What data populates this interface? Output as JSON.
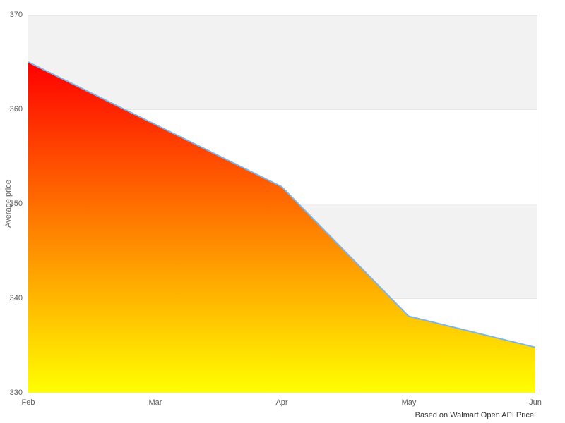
{
  "chart": {
    "y_axis_title": "Average price",
    "caption": "Based on Walmart Open API Price",
    "colors": {
      "line": "#7cb5ec",
      "gradient_top": "#ff0000",
      "gradient_bottom": "#ffff00",
      "band_fill": "#f2f2f2",
      "gridline": "#e6e6e6",
      "axis_line": "#d9d9d9",
      "label_text": "#606060",
      "caption_text": "#333333"
    }
  },
  "chart_data": {
    "type": "area",
    "categories": [
      "Feb",
      "Mar",
      "Apr",
      "May",
      "Jun"
    ],
    "series": [
      {
        "name": "Average price",
        "values": [
          365,
          358.4,
          351.8,
          338.1,
          334.8
        ]
      }
    ],
    "title": "",
    "xlabel": "",
    "ylabel": "Average price",
    "ylim": [
      330,
      370
    ],
    "yticks": [
      330,
      340,
      350,
      360,
      370
    ],
    "grid": "alternating-bands",
    "legend": "none",
    "annotations": [
      "Based on Walmart Open API Price"
    ]
  }
}
